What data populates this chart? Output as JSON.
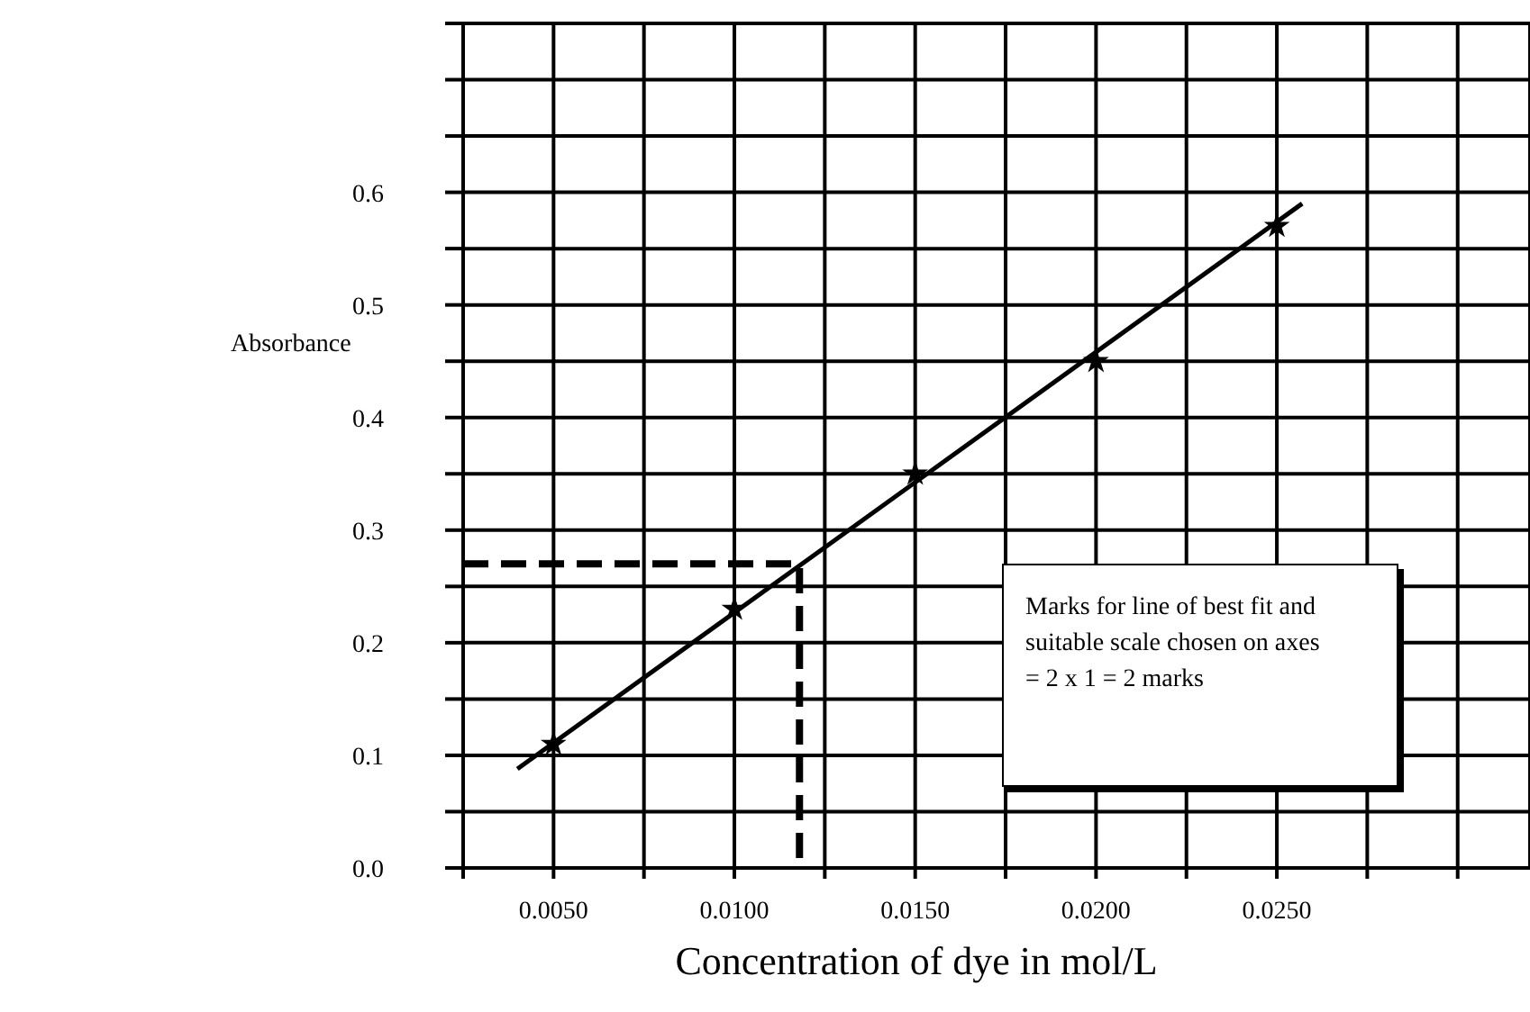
{
  "chart_data": {
    "type": "scatter",
    "xlabel": "Concentration of dye in mol/L",
    "ylabel": "Absorbance",
    "xlim": [
      0.0025,
      0.032
    ],
    "xticks": [
      {
        "value": 0.0025,
        "label": null
      },
      {
        "value": 0.005,
        "label": "0.0050"
      },
      {
        "value": 0.0075,
        "label": null
      },
      {
        "value": 0.01,
        "label": "0.0100"
      },
      {
        "value": 0.0125,
        "label": null
      },
      {
        "value": 0.015,
        "label": "0.0150"
      },
      {
        "value": 0.0175,
        "label": null
      },
      {
        "value": 0.02,
        "label": "0.0200"
      },
      {
        "value": 0.0225,
        "label": null
      },
      {
        "value": 0.025,
        "label": "0.0250"
      },
      {
        "value": 0.0275,
        "label": null
      },
      {
        "value": 0.03,
        "label": null
      }
    ],
    "ylim": [
      0,
      0.75
    ],
    "yticks": [
      {
        "value": 0,
        "label": "0.0"
      },
      {
        "value": 0.05,
        "label": null
      },
      {
        "value": 0.1,
        "label": "0.1"
      },
      {
        "value": 0.15,
        "label": null
      },
      {
        "value": 0.2,
        "label": "0.2"
      },
      {
        "value": 0.25,
        "label": null
      },
      {
        "value": 0.3,
        "label": "0.3"
      },
      {
        "value": 0.35,
        "label": null
      },
      {
        "value": 0.4,
        "label": "0.4"
      },
      {
        "value": 0.45,
        "label": null
      },
      {
        "value": 0.5,
        "label": "0.5"
      },
      {
        "value": 0.55,
        "label": null
      },
      {
        "value": 0.6,
        "label": "0.6"
      },
      {
        "value": 0.65,
        "label": null
      },
      {
        "value": 0.7,
        "label": null
      },
      {
        "value": 0.75,
        "label": null
      }
    ],
    "grid": true,
    "series": [
      {
        "type": "line",
        "color": "#000000",
        "marker": "none",
        "line_style": "solid",
        "x": [
          0.004,
          0.0257
        ],
        "values": [
          0.088,
          0.59
        ]
      },
      {
        "color": "#000000",
        "marker": "star",
        "x": [
          0.005,
          0.01,
          0.015,
          0.02,
          0.025
        ],
        "values": [
          0.11,
          0.23,
          0.35,
          0.45,
          0.57
        ]
      },
      {
        "type": "line",
        "color": "#000000",
        "marker": "none",
        "line_style": "dashed",
        "x": [
          0.0025,
          0.0118,
          0.0118
        ],
        "values": [
          0.27,
          0.27,
          0
        ]
      }
    ],
    "annotations": [
      "Marks for line of best fit and suitable scale chosen on axes = 2 x 1 = 2 marks"
    ]
  }
}
